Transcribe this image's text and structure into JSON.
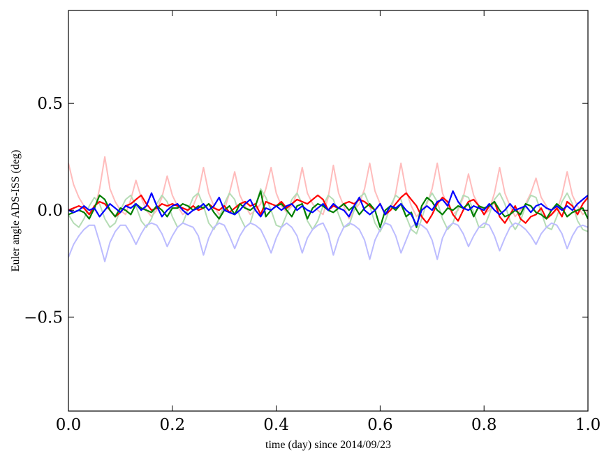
{
  "chart_data": {
    "type": "line",
    "title": "",
    "xlabel": "time (day) since 2014/09/23",
    "ylabel": "Euler angle ADS-ISS (deg)",
    "xlim": [
      0.0,
      1.0
    ],
    "ylim": [
      -0.94,
      0.935
    ],
    "grid": false,
    "legend": "none",
    "xticks": [
      0.0,
      0.2,
      0.4,
      0.6,
      0.8,
      1.0
    ],
    "xtick_labels": [
      "0.0",
      "0.2",
      "0.4",
      "0.6",
      "0.8",
      "1.0"
    ],
    "yticks": [
      -0.5,
      0.0,
      0.5
    ],
    "ytick_labels": [
      "−0.5",
      "0.0",
      "0.5"
    ],
    "x_start": 0.0,
    "x_step": 0.01,
    "series": [
      {
        "name": "light-red",
        "color": "#ffbcbc",
        "width": 2,
        "values": [
          0.22,
          0.12,
          0.06,
          0.02,
          -0.02,
          0.0,
          0.1,
          0.25,
          0.1,
          0.04,
          0.0,
          -0.02,
          0.05,
          0.14,
          0.06,
          0.0,
          -0.03,
          0.0,
          0.06,
          0.16,
          0.07,
          0.02,
          -0.02,
          0.0,
          0.02,
          0.08,
          0.2,
          0.08,
          0.02,
          -0.02,
          0.0,
          0.08,
          0.18,
          0.07,
          0.02,
          -0.02,
          0.0,
          0.03,
          0.1,
          0.2,
          0.08,
          0.02,
          -0.01,
          0.02,
          0.08,
          0.2,
          0.08,
          0.03,
          0.0,
          -0.02,
          0.06,
          0.21,
          0.08,
          0.02,
          -0.04,
          0.0,
          0.03,
          0.1,
          0.22,
          0.09,
          0.03,
          -0.02,
          0.0,
          0.08,
          0.22,
          0.09,
          0.02,
          -0.03,
          0.0,
          0.03,
          0.1,
          0.22,
          0.08,
          0.02,
          -0.02,
          0.0,
          0.06,
          0.17,
          0.07,
          0.02,
          -0.02,
          0.0,
          0.08,
          0.2,
          0.08,
          0.02,
          -0.03,
          0.0,
          0.03,
          0.08,
          0.15,
          0.06,
          0.02,
          -0.02,
          0.0,
          0.07,
          0.18,
          0.07,
          0.02,
          -0.02,
          0.0
        ]
      },
      {
        "name": "light-green",
        "color": "#b5dcb5",
        "width": 2,
        "values": [
          -0.02,
          -0.06,
          -0.08,
          -0.04,
          0.02,
          0.06,
          0.03,
          -0.04,
          -0.08,
          -0.06,
          0.0,
          0.05,
          0.07,
          0.02,
          -0.05,
          -0.08,
          -0.04,
          0.03,
          0.07,
          0.04,
          -0.03,
          -0.08,
          -0.06,
          0.0,
          0.06,
          0.08,
          0.02,
          -0.06,
          -0.09,
          -0.04,
          0.03,
          0.08,
          0.05,
          -0.03,
          -0.08,
          -0.06,
          0.02,
          0.1,
          0.06,
          0.0,
          -0.07,
          -0.08,
          -0.02,
          0.05,
          0.08,
          0.03,
          -0.05,
          -0.09,
          -0.05,
          0.02,
          0.07,
          0.05,
          -0.02,
          -0.08,
          -0.07,
          0.0,
          0.06,
          0.08,
          0.02,
          -0.06,
          -0.1,
          -0.05,
          0.02,
          0.07,
          0.05,
          -0.03,
          -0.09,
          -0.11,
          -0.04,
          0.04,
          0.08,
          0.04,
          -0.04,
          -0.09,
          -0.06,
          0.01,
          0.07,
          0.06,
          -0.01,
          -0.08,
          -0.08,
          -0.02,
          0.05,
          0.08,
          0.03,
          -0.05,
          -0.09,
          -0.05,
          0.02,
          0.07,
          0.06,
          -0.01,
          -0.08,
          -0.09,
          -0.03,
          0.04,
          0.08,
          0.03,
          -0.05,
          -0.09,
          -0.1
        ]
      },
      {
        "name": "light-blue",
        "color": "#bcbcff",
        "width": 2,
        "values": [
          -0.22,
          -0.16,
          -0.12,
          -0.09,
          -0.07,
          -0.07,
          -0.15,
          -0.24,
          -0.15,
          -0.1,
          -0.07,
          -0.07,
          -0.11,
          -0.16,
          -0.11,
          -0.07,
          -0.06,
          -0.07,
          -0.11,
          -0.17,
          -0.12,
          -0.08,
          -0.06,
          -0.07,
          -0.08,
          -0.12,
          -0.21,
          -0.13,
          -0.08,
          -0.06,
          -0.07,
          -0.12,
          -0.18,
          -0.12,
          -0.08,
          -0.06,
          -0.07,
          -0.09,
          -0.14,
          -0.2,
          -0.13,
          -0.08,
          -0.06,
          -0.08,
          -0.12,
          -0.2,
          -0.13,
          -0.09,
          -0.07,
          -0.06,
          -0.11,
          -0.21,
          -0.13,
          -0.08,
          -0.06,
          -0.07,
          -0.09,
          -0.14,
          -0.23,
          -0.14,
          -0.09,
          -0.06,
          -0.07,
          -0.12,
          -0.2,
          -0.14,
          -0.08,
          -0.06,
          -0.07,
          -0.09,
          -0.14,
          -0.23,
          -0.13,
          -0.08,
          -0.06,
          -0.07,
          -0.11,
          -0.17,
          -0.12,
          -0.08,
          -0.06,
          -0.07,
          -0.12,
          -0.19,
          -0.13,
          -0.08,
          -0.06,
          -0.07,
          -0.09,
          -0.12,
          -0.16,
          -0.11,
          -0.08,
          -0.06,
          -0.07,
          -0.11,
          -0.18,
          -0.12,
          -0.08,
          -0.07,
          -0.08
        ]
      },
      {
        "name": "red",
        "color": "#ff0000",
        "width": 2.2,
        "values": [
          0.0,
          0.01,
          0.02,
          0.01,
          -0.02,
          0.02,
          0.04,
          0.03,
          0.0,
          -0.03,
          -0.01,
          0.02,
          0.03,
          0.05,
          0.07,
          0.03,
          0.0,
          0.01,
          0.03,
          0.02,
          0.03,
          0.02,
          0.01,
          0.0,
          0.02,
          0.0,
          0.01,
          0.03,
          0.01,
          0.0,
          0.02,
          -0.01,
          0.01,
          0.03,
          0.04,
          0.02,
          0.03,
          -0.02,
          0.04,
          0.03,
          0.02,
          0.04,
          0.01,
          0.03,
          0.05,
          0.04,
          0.03,
          0.05,
          0.07,
          0.05,
          0.0,
          0.02,
          0.01,
          0.03,
          0.04,
          0.03,
          0.05,
          0.04,
          0.02,
          0.0,
          0.03,
          -0.02,
          0.0,
          0.03,
          0.06,
          0.08,
          0.05,
          0.02,
          -0.03,
          -0.06,
          -0.02,
          0.03,
          0.06,
          0.04,
          -0.02,
          -0.05,
          0.0,
          0.04,
          0.05,
          0.02,
          -0.02,
          0.02,
          0.04,
          -0.03,
          -0.06,
          -0.02,
          0.02,
          -0.04,
          -0.06,
          -0.03,
          -0.02,
          0.01,
          -0.04,
          -0.02,
          0.01,
          -0.03,
          0.04,
          0.02,
          -0.02,
          0.03,
          0.06
        ]
      },
      {
        "name": "green",
        "color": "#007f00",
        "width": 2.2,
        "values": [
          -0.02,
          -0.01,
          0.0,
          -0.01,
          -0.04,
          0.01,
          0.07,
          0.05,
          0.0,
          -0.03,
          0.01,
          0.0,
          -0.02,
          0.03,
          0.01,
          0.0,
          -0.01,
          0.02,
          0.0,
          -0.03,
          0.01,
          0.01,
          0.03,
          0.02,
          0.0,
          0.02,
          0.01,
          0.03,
          -0.01,
          -0.04,
          0.0,
          0.02,
          -0.02,
          0.03,
          0.01,
          0.0,
          0.02,
          0.09,
          -0.03,
          0.0,
          0.02,
          0.03,
          0.0,
          -0.03,
          0.02,
          0.03,
          -0.04,
          0.01,
          0.03,
          0.02,
          0.0,
          -0.01,
          0.01,
          0.03,
          0.0,
          0.02,
          -0.02,
          0.01,
          0.03,
          0.0,
          -0.08,
          0.0,
          0.02,
          0.0,
          0.03,
          -0.03,
          -0.01,
          -0.08,
          0.02,
          0.06,
          0.04,
          0.0,
          -0.02,
          0.01,
          0.0,
          0.02,
          0.01,
          0.03,
          -0.03,
          0.02,
          0.01,
          0.02,
          0.04,
          0.0,
          -0.03,
          -0.02,
          0.0,
          -0.02,
          0.03,
          0.02,
          -0.01,
          -0.02,
          -0.04,
          0.0,
          0.03,
          0.01,
          -0.03,
          -0.01,
          0.0,
          0.01,
          -0.04
        ]
      },
      {
        "name": "blue",
        "color": "#0000ff",
        "width": 2.2,
        "values": [
          0.0,
          -0.01,
          0.0,
          0.02,
          0.0,
          0.01,
          -0.03,
          0.0,
          0.03,
          0.01,
          -0.01,
          0.02,
          0.01,
          0.03,
          0.0,
          0.02,
          0.08,
          0.02,
          -0.03,
          0.0,
          0.02,
          0.03,
          0.0,
          -0.02,
          0.0,
          0.01,
          0.03,
          0.0,
          0.02,
          0.06,
          0.0,
          -0.01,
          -0.02,
          0.0,
          0.03,
          0.05,
          0.0,
          -0.03,
          0.01,
          0.0,
          0.02,
          0.0,
          0.02,
          0.03,
          0.0,
          0.02,
          0.0,
          -0.01,
          0.01,
          0.03,
          0.0,
          0.03,
          0.01,
          0.0,
          -0.03,
          0.02,
          0.06,
          0.0,
          -0.02,
          0.0,
          0.03,
          -0.02,
          0.02,
          0.01,
          0.03,
          0.0,
          -0.02,
          -0.07,
          0.0,
          0.02,
          0.0,
          0.04,
          0.05,
          0.02,
          0.09,
          0.04,
          0.01,
          0.0,
          0.02,
          0.01,
          0.0,
          0.03,
          0.0,
          -0.02,
          0.0,
          0.03,
          0.0,
          0.01,
          0.02,
          -0.01,
          0.02,
          0.03,
          0.01,
          0.0,
          0.02,
          0.0,
          0.02,
          0.0,
          0.03,
          0.05,
          0.07
        ]
      }
    ]
  }
}
